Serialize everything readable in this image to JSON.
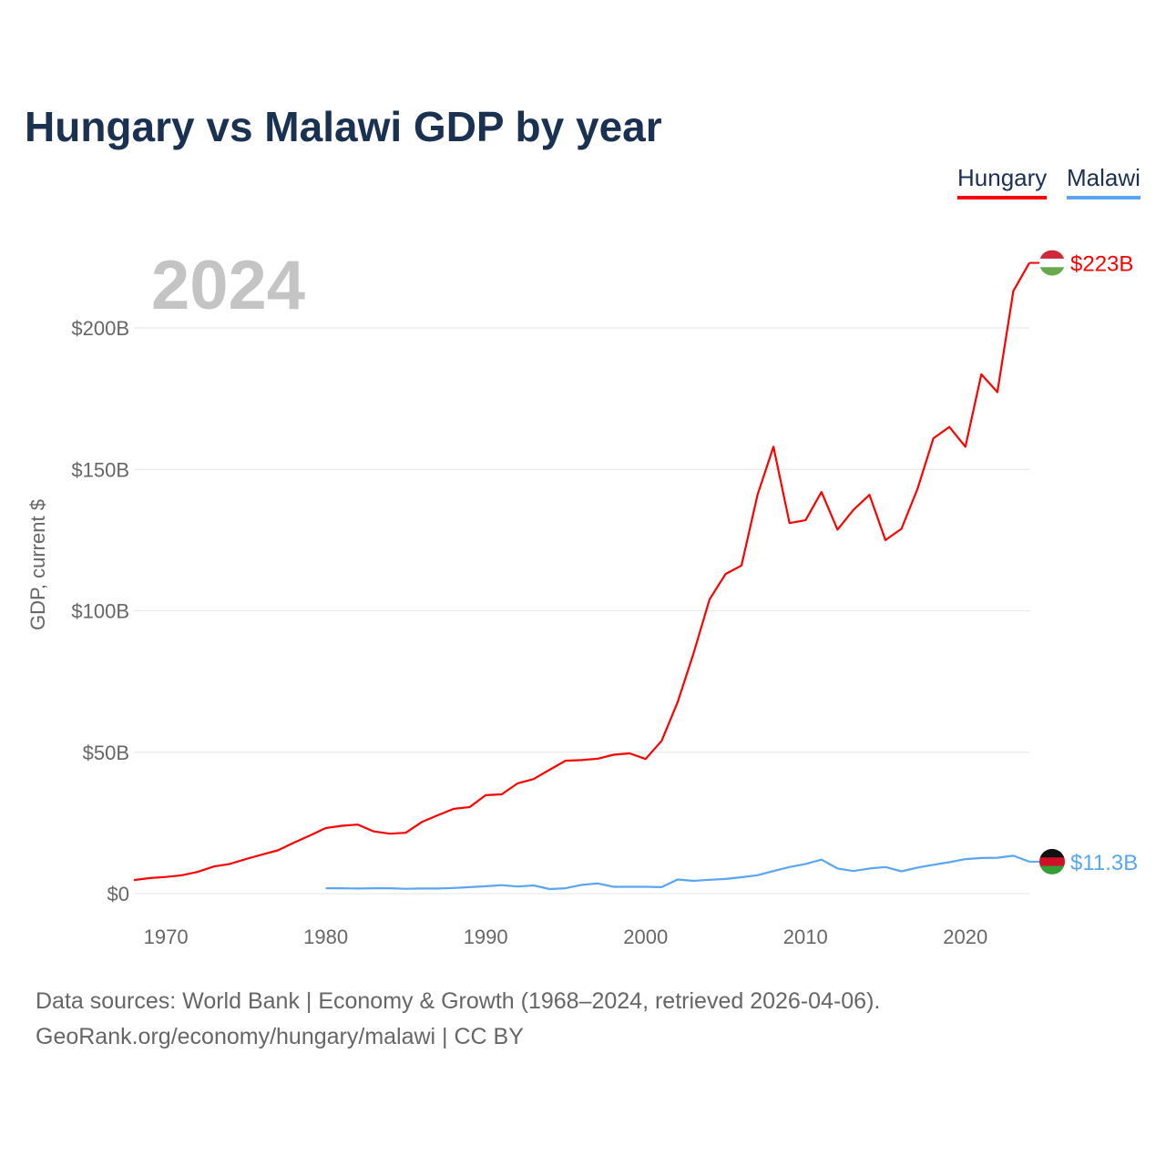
{
  "chart_data": {
    "type": "line",
    "title": "Hungary vs Malawi GDP by year",
    "ylabel": "GDP, current $",
    "xlabel": "",
    "year_label": "2024",
    "xlim": [
      1968,
      2024
    ],
    "ylim": [
      0,
      200
    ],
    "x_ticks": [
      1970,
      1980,
      1990,
      2000,
      2010,
      2020
    ],
    "y_ticks": [
      {
        "v": 0,
        "label": "$0"
      },
      {
        "v": 50,
        "label": "$50B"
      },
      {
        "v": 100,
        "label": "$100B"
      },
      {
        "v": 150,
        "label": "$150B"
      },
      {
        "v": 200,
        "label": "$200B"
      }
    ],
    "grid": true,
    "legend_position": "top-right",
    "series": [
      {
        "name": "Hungary",
        "color": "#ff0000",
        "end_label": "$223B",
        "start_year": 1968,
        "values": [
          4.8,
          5.5,
          5.9,
          6.5,
          7.7,
          9.6,
          10.5,
          12.2,
          13.8,
          15.3,
          18.0,
          20.5,
          23.2,
          24.0,
          24.4,
          22.0,
          21.2,
          21.5,
          25.3,
          27.7,
          30.0,
          30.6,
          34.8,
          35.1,
          39.0,
          40.5,
          43.8,
          47.0,
          47.2,
          47.7,
          49.1,
          49.6,
          47.6,
          54.0,
          67.6,
          85.0,
          104.0,
          113.0,
          116.0,
          141.0,
          158.0,
          131.0,
          132.0,
          142.0,
          128.7,
          135.7,
          141.0,
          125.0,
          129.0,
          143.0,
          161.0,
          165.0,
          158.0,
          183.6,
          177.3,
          213.0,
          223.0
        ]
      },
      {
        "name": "Malawi",
        "color": "#5aa5f0",
        "end_label": "$11.3B",
        "start_year": 1980,
        "values": [
          1.9,
          1.9,
          1.8,
          1.9,
          1.9,
          1.7,
          1.8,
          1.8,
          2.0,
          2.3,
          2.6,
          3.0,
          2.5,
          2.9,
          1.6,
          1.9,
          3.1,
          3.6,
          2.4,
          2.4,
          2.4,
          2.3,
          5.0,
          4.5,
          4.9,
          5.2,
          5.8,
          6.5,
          8.0,
          9.4,
          10.5,
          12.0,
          8.9,
          8.0,
          8.9,
          9.4,
          7.9,
          9.2,
          10.2,
          11.1,
          12.2,
          12.6,
          12.7,
          13.4,
          11.3
        ]
      }
    ]
  },
  "footer": {
    "line1": "Data sources: World Bank | Economy & Growth (1968–2024, retrieved 2026-04-06).",
    "line2": "GeoRank.org/economy/hungary/malawi | CC BY"
  }
}
